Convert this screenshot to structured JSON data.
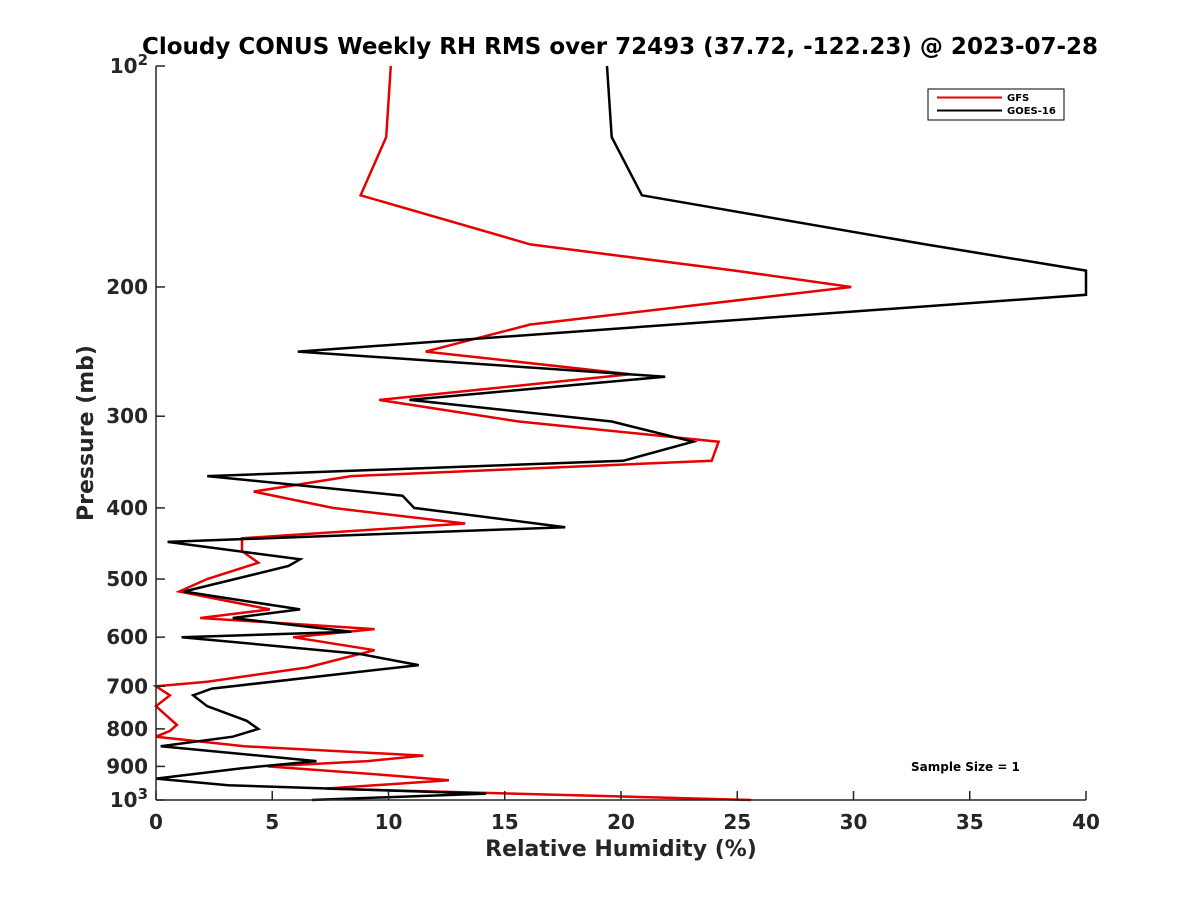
{
  "chart_data": {
    "type": "line",
    "title": "Cloudy CONUS Weekly RH RMS over 72493 (37.72, -122.23) @ 2023-07-28",
    "xlabel": "Relative Humidity (%)",
    "ylabel": "Pressure (mb)",
    "xlim": [
      0,
      40
    ],
    "ylim": [
      100,
      1000
    ],
    "yscale": "log",
    "y_reversed": true,
    "x_ticks": [
      "0",
      "5",
      "10",
      "15",
      "20",
      "25",
      "30",
      "35",
      "40"
    ],
    "y_ticks": [
      {
        "value": 100,
        "base": "10",
        "exp": "2"
      },
      {
        "value": 200,
        "label": "200"
      },
      {
        "value": 300,
        "label": "300"
      },
      {
        "value": 400,
        "label": "400"
      },
      {
        "value": 500,
        "label": "500"
      },
      {
        "value": 600,
        "label": "600"
      },
      {
        "value": 700,
        "label": "700"
      },
      {
        "value": 800,
        "label": "800"
      },
      {
        "value": 900,
        "label": "900"
      },
      {
        "value": 1000,
        "base": "10",
        "exp": "3"
      }
    ],
    "legend_position": "top-right",
    "annotation": "Sample Size = 1",
    "series": [
      {
        "name": "GFS",
        "color": "#e60000",
        "points": [
          [
            10.1,
            100
          ],
          [
            9.9,
            125
          ],
          [
            8.8,
            150
          ],
          [
            16.1,
            175
          ],
          [
            24.9,
            190
          ],
          [
            29.9,
            200
          ],
          [
            16.1,
            225
          ],
          [
            11.6,
            245
          ],
          [
            20.4,
            263
          ],
          [
            9.6,
            285
          ],
          [
            15.6,
            305
          ],
          [
            24.2,
            325
          ],
          [
            23.9,
            345
          ],
          [
            8.4,
            362
          ],
          [
            4.2,
            380
          ],
          [
            7.6,
            400
          ],
          [
            13.3,
            420
          ],
          [
            3.7,
            440
          ],
          [
            3.7,
            458
          ],
          [
            4.4,
            475
          ],
          [
            2.2,
            500
          ],
          [
            1.0,
            520
          ],
          [
            4.9,
            550
          ],
          [
            1.9,
            565
          ],
          [
            9.4,
            585
          ],
          [
            5.9,
            600
          ],
          [
            9.4,
            625
          ],
          [
            6.5,
            660
          ],
          [
            2.2,
            690
          ],
          [
            0.0,
            700
          ],
          [
            0.6,
            720
          ],
          [
            0.0,
            745
          ],
          [
            0.4,
            765
          ],
          [
            0.9,
            790
          ],
          [
            0.6,
            805
          ],
          [
            0.0,
            820
          ],
          [
            3.8,
            845
          ],
          [
            11.5,
            870
          ],
          [
            9.1,
            885
          ],
          [
            4.8,
            900
          ],
          [
            9.9,
            925
          ],
          [
            12.6,
            940
          ],
          [
            7.3,
            965
          ],
          [
            25.6,
            1000
          ]
        ]
      },
      {
        "name": "GOES-16",
        "color": "#000000",
        "points": [
          [
            19.4,
            100
          ],
          [
            19.6,
            125
          ],
          [
            20.9,
            150
          ],
          [
            33.1,
            175
          ],
          [
            40.0,
            190
          ],
          [
            40.0,
            205
          ],
          [
            6.1,
            245
          ],
          [
            21.9,
            265
          ],
          [
            10.9,
            285
          ],
          [
            19.6,
            305
          ],
          [
            23.1,
            325
          ],
          [
            20.1,
            345
          ],
          [
            2.2,
            362
          ],
          [
            10.6,
            385
          ],
          [
            11.1,
            400
          ],
          [
            17.6,
            425
          ],
          [
            0.5,
            445
          ],
          [
            6.2,
            470
          ],
          [
            5.7,
            480
          ],
          [
            1.2,
            520
          ],
          [
            6.2,
            550
          ],
          [
            3.3,
            565
          ],
          [
            8.4,
            590
          ],
          [
            1.1,
            600
          ],
          [
            8.7,
            632
          ],
          [
            11.3,
            655
          ],
          [
            2.4,
            705
          ],
          [
            1.6,
            720
          ],
          [
            2.2,
            745
          ],
          [
            3.9,
            780
          ],
          [
            4.4,
            800
          ],
          [
            3.3,
            820
          ],
          [
            0.2,
            845
          ],
          [
            6.9,
            885
          ],
          [
            3.7,
            905
          ],
          [
            0.0,
            935
          ],
          [
            3.1,
            955
          ],
          [
            14.2,
            980
          ],
          [
            6.7,
            1000
          ]
        ]
      }
    ]
  }
}
